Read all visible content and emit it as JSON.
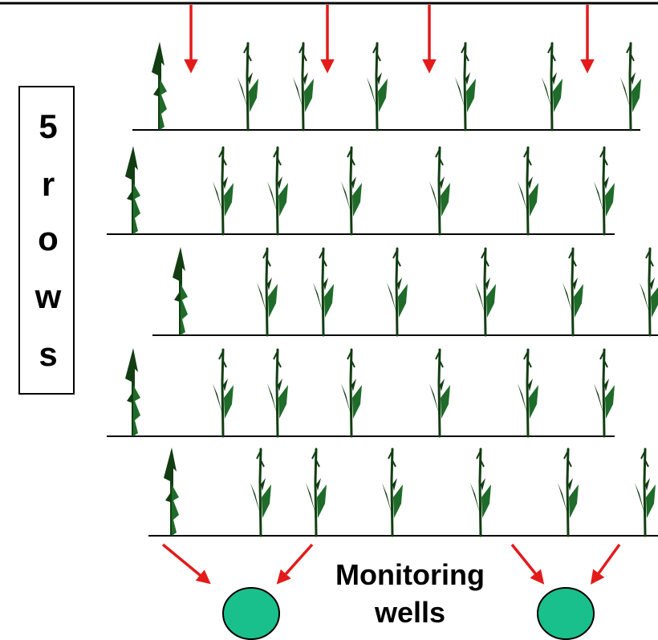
{
  "colors": {
    "background": "#ffffff",
    "plant_dark": "#123d12",
    "plant_mid": "#1f6b2a",
    "arrow_red": "#e31b1b",
    "well_fill": "#19c08c",
    "well_stroke": "#000000",
    "ground_line": "#000000"
  },
  "side_label": {
    "characters": [
      "5",
      "r",
      "o",
      "w",
      "s"
    ]
  },
  "diagram": {
    "row_count": 5,
    "well_count": 2,
    "wells_label": {
      "line1": "Monitoring",
      "line2": "wells"
    },
    "icons": {
      "plant": "corn-plant-icon",
      "seedling": "tall-seedling-icon",
      "arrow": "red-arrow-icon",
      "well": "monitoring-well-icon"
    }
  }
}
